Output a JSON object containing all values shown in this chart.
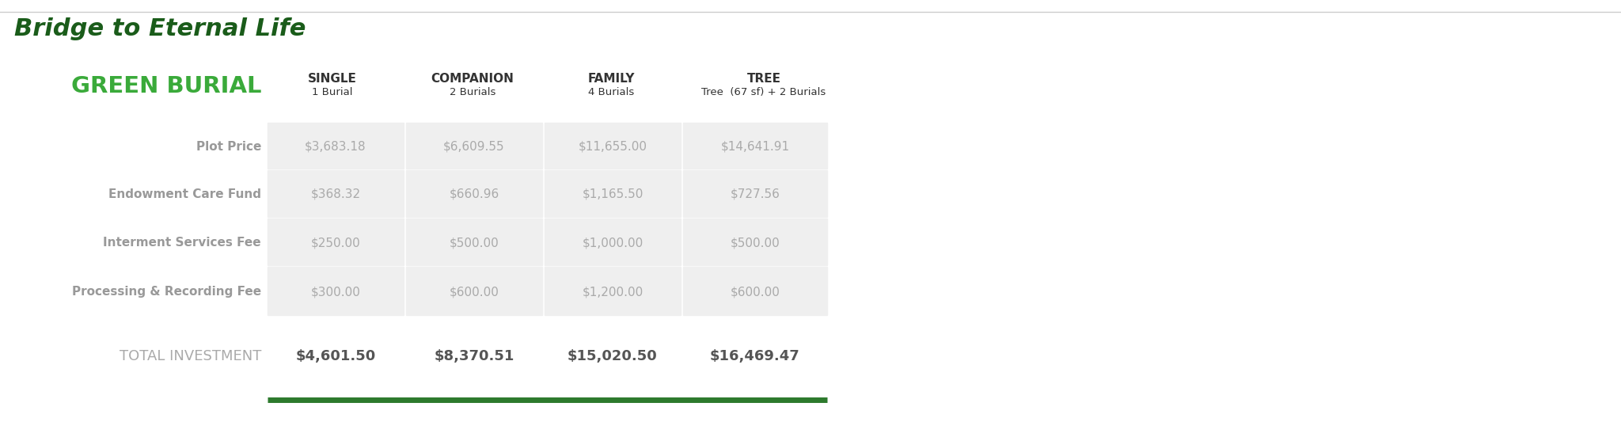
{
  "title": "Bridge to Eternal Life",
  "subtitle": "GREEN BURIAL",
  "title_color": "#1a5c1a",
  "subtitle_color": "#3aaa3a",
  "background_color": "#ffffff",
  "col_headers_line1": [
    "SINGLE",
    "COMPANION",
    "FAMILY",
    "TREE"
  ],
  "col_headers_line2": [
    "1 Burial",
    "2 Burials",
    "4 Burials",
    "Tree  (67 sf) + 2 Burials"
  ],
  "row_labels": [
    "Plot Price",
    "Endowment Care Fund",
    "Interment Services Fee",
    "Processing & Recording Fee",
    "TOTAL INVESTMENT"
  ],
  "data": [
    [
      "$3,683.18",
      "$6,609.55",
      "$11,655.00",
      "$14,641.91"
    ],
    [
      "$368.32",
      "$660.96",
      "$1,165.50",
      "$727.56"
    ],
    [
      "$250.00",
      "$500.00",
      "$1,000.00",
      "$500.00"
    ],
    [
      "$300.00",
      "$600.00",
      "$1,200.00",
      "$600.00"
    ],
    [
      "$4,601.50",
      "$8,370.51",
      "$15,020.50",
      "$16,469.47"
    ]
  ],
  "cell_bg": "#efefef",
  "col_header_color": "#333333",
  "row_label_color": "#999999",
  "value_color": "#aaaaaa",
  "total_label_color": "#aaaaaa",
  "total_value_color": "#555555",
  "separator_color": "#2d7a2d",
  "top_line_color": "#cccccc",
  "figw": 20.48,
  "figh": 5.52,
  "dpi": 100
}
